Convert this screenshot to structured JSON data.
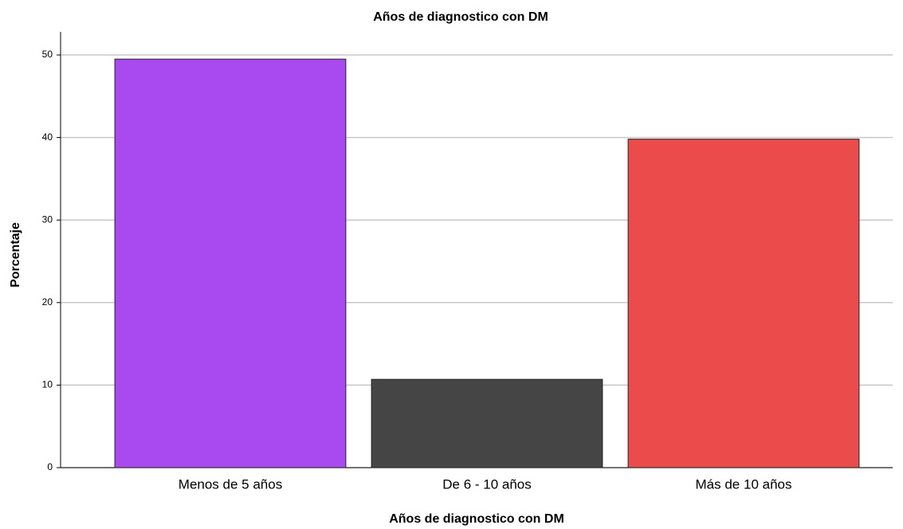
{
  "chart_data": {
    "type": "bar",
    "title": "Años de diagnostico con DM",
    "x_label": "Años de diagnostico con DM",
    "y_label": "Porcentaje",
    "categories": [
      "Menos de 5 años",
      "De 6 - 10 años",
      "Más de 10 años"
    ],
    "values": [
      49.5,
      10.7,
      39.8
    ],
    "colors": [
      "#a94af0",
      "#454545",
      "#ec4b4b"
    ],
    "ylim": [
      0,
      52.8
    ],
    "yticks": [
      0,
      10,
      20,
      30,
      40,
      50
    ],
    "grid": true
  }
}
